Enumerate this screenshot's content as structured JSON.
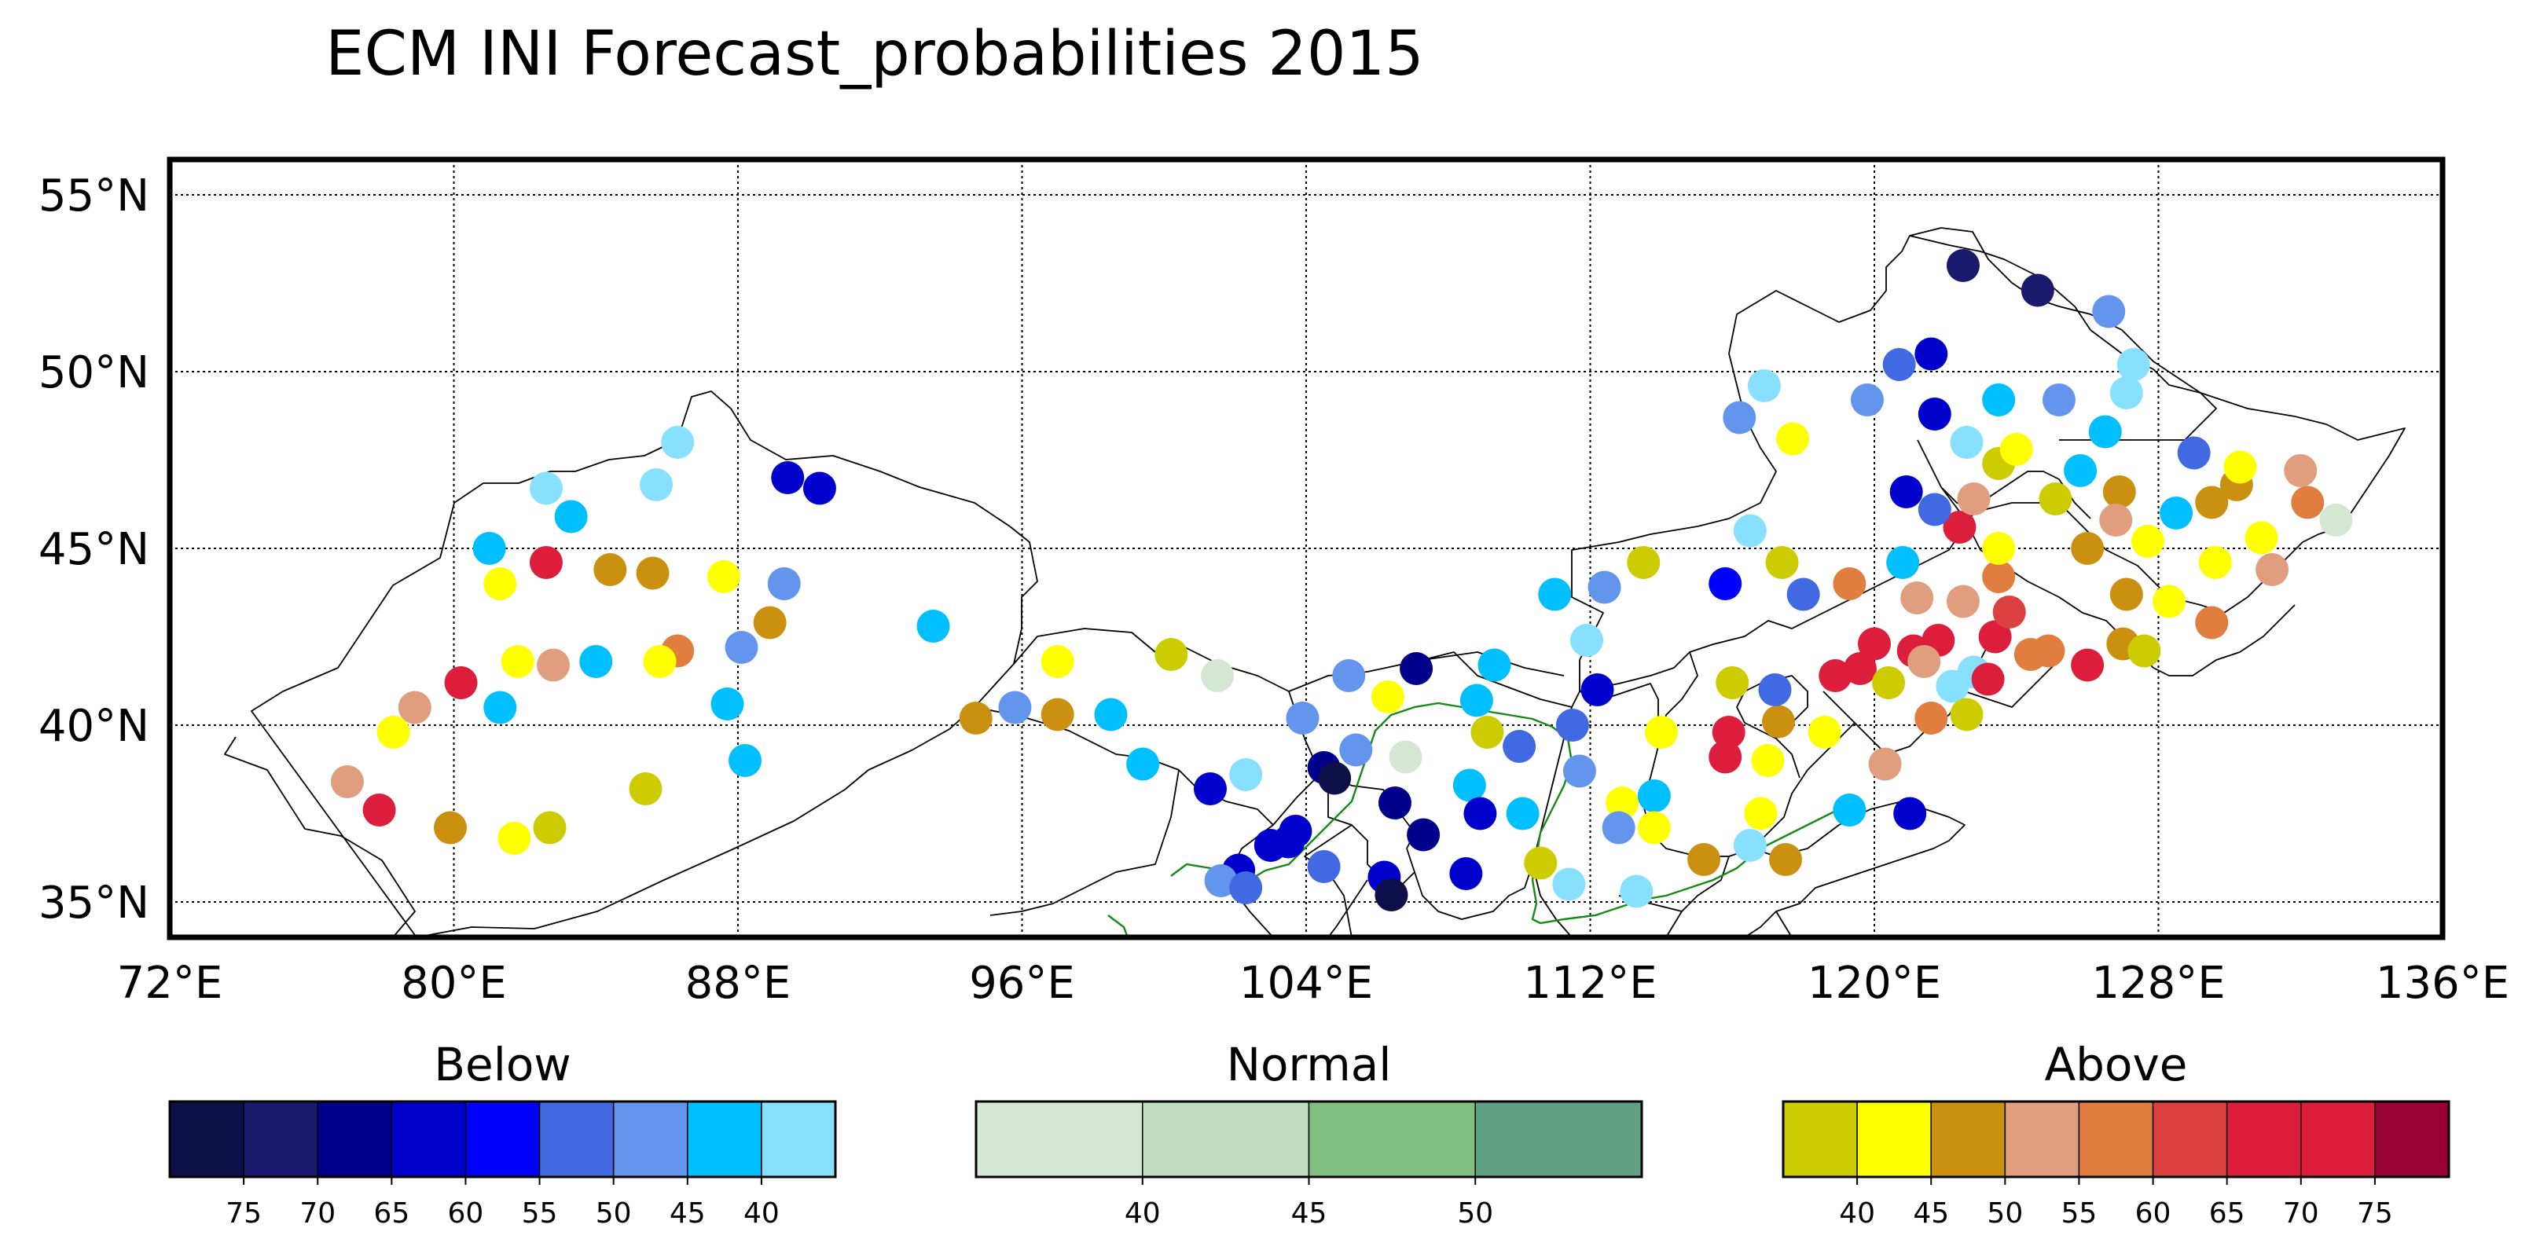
{
  "title": "ECM INI Forecast_probabilities 2015",
  "map": {
    "lon_range": [
      72,
      136
    ],
    "lat_range": [
      34,
      56
    ],
    "lon_ticks": [
      {
        "value": 72,
        "label": "72°E"
      },
      {
        "value": 80,
        "label": "80°E"
      },
      {
        "value": 88,
        "label": "88°E"
      },
      {
        "value": 96,
        "label": "96°E"
      },
      {
        "value": 104,
        "label": "104°E"
      },
      {
        "value": 112,
        "label": "112°E"
      },
      {
        "value": 120,
        "label": "120°E"
      },
      {
        "value": 128,
        "label": "128°E"
      },
      {
        "value": 136,
        "label": "136°E"
      }
    ],
    "lat_ticks": [
      {
        "value": 55,
        "label": "55°N"
      },
      {
        "value": 50,
        "label": "50°N"
      },
      {
        "value": 45,
        "label": "45°N"
      },
      {
        "value": 40,
        "label": "40°N"
      },
      {
        "value": 35,
        "label": "35°N"
      }
    ],
    "grid": true
  },
  "colorbars": [
    {
      "title": "Below",
      "colors": [
        "#0e0e48",
        "#19196e",
        "#00008b",
        "#0000cd",
        "#0000ff",
        "#4169e1",
        "#6495ed",
        "#00bfff",
        "#87e0ff"
      ],
      "labels": [
        "75",
        "70",
        "65",
        "60",
        "55",
        "50",
        "45",
        "40"
      ]
    },
    {
      "title": "Normal",
      "colors": [
        "#d3e7d3",
        "#bfdcbf",
        "#80c080",
        "#5fa082"
      ],
      "labels": [
        "40",
        "45",
        "50"
      ]
    },
    {
      "title": "Above",
      "colors": [
        "#cccc00",
        "#ffff00",
        "#cc9010",
        "#e09e7e",
        "#e27d40",
        "#dd4040",
        "#dc1e3c",
        "#dc1e3c",
        "#990033"
      ],
      "labels": [
        "40",
        "45",
        "50",
        "55",
        "60",
        "65",
        "70",
        "75"
      ]
    }
  ],
  "stations": [
    {
      "lon": 82.6,
      "lat": 46.7,
      "category": "below",
      "color": "#87e0ff"
    },
    {
      "lon": 85.7,
      "lat": 46.8,
      "category": "below",
      "color": "#87e0ff"
    },
    {
      "lon": 86.3,
      "lat": 48.0,
      "category": "below",
      "color": "#87e0ff"
    },
    {
      "lon": 83.3,
      "lat": 45.9,
      "category": "below",
      "color": "#00bfff"
    },
    {
      "lon": 81.0,
      "lat": 45.0,
      "category": "below",
      "color": "#00bfff"
    },
    {
      "lon": 89.4,
      "lat": 47.0,
      "category": "below",
      "color": "#0000cd"
    },
    {
      "lon": 90.3,
      "lat": 46.7,
      "category": "below",
      "color": "#0000cd"
    },
    {
      "lon": 81.3,
      "lat": 44.0,
      "category": "above",
      "color": "#ffff00"
    },
    {
      "lon": 82.6,
      "lat": 44.6,
      "category": "above",
      "color": "#dc1e3c"
    },
    {
      "lon": 84.4,
      "lat": 44.4,
      "category": "above",
      "color": "#cc9010"
    },
    {
      "lon": 85.6,
      "lat": 44.3,
      "category": "above",
      "color": "#cc9010"
    },
    {
      "lon": 87.6,
      "lat": 44.2,
      "category": "above",
      "color": "#ffff00"
    },
    {
      "lon": 89.3,
      "lat": 44.0,
      "category": "below",
      "color": "#6495ed"
    },
    {
      "lon": 88.9,
      "lat": 42.9,
      "category": "above",
      "color": "#cc9010"
    },
    {
      "lon": 88.1,
      "lat": 42.2,
      "category": "below",
      "color": "#6495ed"
    },
    {
      "lon": 86.3,
      "lat": 42.1,
      "category": "above",
      "color": "#e27d40"
    },
    {
      "lon": 85.8,
      "lat": 41.8,
      "category": "above",
      "color": "#ffff00"
    },
    {
      "lon": 84.0,
      "lat": 41.8,
      "category": "below",
      "color": "#00bfff"
    },
    {
      "lon": 82.8,
      "lat": 41.7,
      "category": "above",
      "color": "#e09e7e"
    },
    {
      "lon": 81.8,
      "lat": 41.8,
      "category": "above",
      "color": "#ffff00"
    },
    {
      "lon": 80.2,
      "lat": 41.2,
      "category": "above",
      "color": "#dc1e3c"
    },
    {
      "lon": 81.3,
      "lat": 40.5,
      "category": "below",
      "color": "#00bfff"
    },
    {
      "lon": 78.9,
      "lat": 40.5,
      "category": "above",
      "color": "#e09e7e"
    },
    {
      "lon": 78.3,
      "lat": 39.8,
      "category": "above",
      "color": "#ffff00"
    },
    {
      "lon": 77.0,
      "lat": 38.4,
      "category": "above",
      "color": "#e09e7e"
    },
    {
      "lon": 77.9,
      "lat": 37.6,
      "category": "above",
      "color": "#dc1e3c"
    },
    {
      "lon": 79.9,
      "lat": 37.1,
      "category": "above",
      "color": "#cc9010"
    },
    {
      "lon": 81.7,
      "lat": 36.8,
      "category": "above",
      "color": "#ffff00"
    },
    {
      "lon": 82.7,
      "lat": 37.1,
      "category": "above",
      "color": "#cccc00"
    },
    {
      "lon": 85.4,
      "lat": 38.2,
      "category": "above",
      "color": "#cccc00"
    },
    {
      "lon": 87.7,
      "lat": 40.6,
      "category": "below",
      "color": "#00bfff"
    },
    {
      "lon": 88.2,
      "lat": 39.0,
      "category": "below",
      "color": "#00bfff"
    },
    {
      "lon": 93.5,
      "lat": 42.8,
      "category": "below",
      "color": "#00bfff"
    },
    {
      "lon": 94.7,
      "lat": 40.2,
      "category": "above",
      "color": "#cc9010"
    },
    {
      "lon": 95.8,
      "lat": 40.5,
      "category": "below",
      "color": "#6495ed"
    },
    {
      "lon": 97.0,
      "lat": 41.8,
      "category": "above",
      "color": "#ffff00"
    },
    {
      "lon": 97.0,
      "lat": 40.3,
      "category": "above",
      "color": "#cc9010"
    },
    {
      "lon": 98.5,
      "lat": 40.3,
      "category": "below",
      "color": "#00bfff"
    },
    {
      "lon": 100.2,
      "lat": 42.0,
      "category": "above",
      "color": "#cccc00"
    },
    {
      "lon": 101.5,
      "lat": 41.4,
      "category": "normal",
      "color": "#d3e7d3"
    },
    {
      "lon": 99.4,
      "lat": 38.9,
      "category": "below",
      "color": "#00bfff"
    },
    {
      "lon": 101.3,
      "lat": 38.2,
      "category": "below",
      "color": "#0000cd"
    },
    {
      "lon": 102.3,
      "lat": 38.6,
      "category": "below",
      "color": "#87e0ff"
    },
    {
      "lon": 103.9,
      "lat": 40.2,
      "category": "below",
      "color": "#6495ed"
    },
    {
      "lon": 105.2,
      "lat": 41.4,
      "category": "below",
      "color": "#6495ed"
    },
    {
      "lon": 106.3,
      "lat": 40.8,
      "category": "above",
      "color": "#ffff00"
    },
    {
      "lon": 107.1,
      "lat": 41.6,
      "category": "below",
      "color": "#00008b"
    },
    {
      "lon": 105.4,
      "lat": 39.3,
      "category": "below",
      "color": "#6495ed"
    },
    {
      "lon": 104.5,
      "lat": 38.8,
      "category": "below",
      "color": "#00008b"
    },
    {
      "lon": 104.8,
      "lat": 38.5,
      "category": "below",
      "color": "#0e0e48"
    },
    {
      "lon": 106.5,
      "lat": 37.8,
      "category": "below",
      "color": "#00008b"
    },
    {
      "lon": 106.8,
      "lat": 39.1,
      "category": "normal",
      "color": "#d3e7d3"
    },
    {
      "lon": 107.3,
      "lat": 36.9,
      "category": "below",
      "color": "#00008b"
    },
    {
      "lon": 103.0,
      "lat": 36.6,
      "category": "below",
      "color": "#0000cd"
    },
    {
      "lon": 103.7,
      "lat": 37.0,
      "category": "below",
      "color": "#0000cd"
    },
    {
      "lon": 103.5,
      "lat": 36.7,
      "category": "below",
      "color": "#0000cd"
    },
    {
      "lon": 102.1,
      "lat": 35.9,
      "category": "below",
      "color": "#0000cd"
    },
    {
      "lon": 101.6,
      "lat": 35.6,
      "category": "below",
      "color": "#6495ed"
    },
    {
      "lon": 102.3,
      "lat": 35.4,
      "category": "below",
      "color": "#4169e1"
    },
    {
      "lon": 104.5,
      "lat": 36.0,
      "category": "below",
      "color": "#4169e1"
    },
    {
      "lon": 106.2,
      "lat": 35.7,
      "category": "below",
      "color": "#0000cd"
    },
    {
      "lon": 106.4,
      "lat": 35.2,
      "category": "below",
      "color": "#0e0e48"
    },
    {
      "lon": 108.5,
      "lat": 35.8,
      "category": "below",
      "color": "#0000cd"
    },
    {
      "lon": 108.6,
      "lat": 38.3,
      "category": "below",
      "color": "#00bfff"
    },
    {
      "lon": 108.9,
      "lat": 37.5,
      "category": "below",
      "color": "#0000cd"
    },
    {
      "lon": 109.1,
      "lat": 39.8,
      "category": "above",
      "color": "#cccc00"
    },
    {
      "lon": 108.8,
      "lat": 40.7,
      "category": "below",
      "color": "#00bfff"
    },
    {
      "lon": 109.3,
      "lat": 41.7,
      "category": "below",
      "color": "#00bfff"
    },
    {
      "lon": 110.0,
      "lat": 39.4,
      "category": "below",
      "color": "#4169e1"
    },
    {
      "lon": 110.1,
      "lat": 37.5,
      "category": "below",
      "color": "#00bfff"
    },
    {
      "lon": 110.6,
      "lat": 36.1,
      "category": "above",
      "color": "#cccc00"
    },
    {
      "lon": 111.4,
      "lat": 35.5,
      "category": "below",
      "color": "#87e0ff"
    },
    {
      "lon": 111.7,
      "lat": 38.7,
      "category": "below",
      "color": "#6495ed"
    },
    {
      "lon": 111.5,
      "lat": 40.0,
      "category": "below",
      "color": "#4169e1"
    },
    {
      "lon": 112.2,
      "lat": 41.0,
      "category": "below",
      "color": "#0000cd"
    },
    {
      "lon": 111.9,
      "lat": 42.4,
      "category": "below",
      "color": "#87e0ff"
    },
    {
      "lon": 111.0,
      "lat": 43.7,
      "category": "below",
      "color": "#00bfff"
    },
    {
      "lon": 112.4,
      "lat": 43.9,
      "category": "below",
      "color": "#6495ed"
    },
    {
      "lon": 113.5,
      "lat": 44.6,
      "category": "above",
      "color": "#cccc00"
    },
    {
      "lon": 112.9,
      "lat": 37.8,
      "category": "above",
      "color": "#ffff00"
    },
    {
      "lon": 113.8,
      "lat": 38.0,
      "category": "below",
      "color": "#00bfff"
    },
    {
      "lon": 113.8,
      "lat": 37.1,
      "category": "above",
      "color": "#ffff00"
    },
    {
      "lon": 112.8,
      "lat": 37.1,
      "category": "below",
      "color": "#6495ed"
    },
    {
      "lon": 113.3,
      "lat": 35.3,
      "category": "below",
      "color": "#87e0ff"
    },
    {
      "lon": 114.0,
      "lat": 39.8,
      "category": "above",
      "color": "#ffff00"
    },
    {
      "lon": 115.2,
      "lat": 36.2,
      "category": "above",
      "color": "#cc9010"
    },
    {
      "lon": 115.8,
      "lat": 39.1,
      "category": "above",
      "color": "#dc1e3c"
    },
    {
      "lon": 115.9,
      "lat": 39.8,
      "category": "above",
      "color": "#dc1e3c"
    },
    {
      "lon": 116.0,
      "lat": 41.2,
      "category": "above",
      "color": "#cccc00"
    },
    {
      "lon": 116.5,
      "lat": 36.6,
      "category": "below",
      "color": "#87e0ff"
    },
    {
      "lon": 116.8,
      "lat": 37.5,
      "category": "above",
      "color": "#ffff00"
    },
    {
      "lon": 117.0,
      "lat": 39.0,
      "category": "above",
      "color": "#ffff00"
    },
    {
      "lon": 117.3,
      "lat": 40.1,
      "category": "above",
      "color": "#cc9010"
    },
    {
      "lon": 117.2,
      "lat": 41.0,
      "category": "below",
      "color": "#4169e1"
    },
    {
      "lon": 117.5,
      "lat": 36.2,
      "category": "above",
      "color": "#cc9010"
    },
    {
      "lon": 118.6,
      "lat": 39.8,
      "category": "above",
      "color": "#ffff00"
    },
    {
      "lon": 118.9,
      "lat": 41.4,
      "category": "above",
      "color": "#dc1e3c"
    },
    {
      "lon": 119.3,
      "lat": 37.6,
      "category": "below",
      "color": "#00bfff"
    },
    {
      "lon": 120.3,
      "lat": 38.9,
      "category": "above",
      "color": "#e09e7e"
    },
    {
      "lon": 121.0,
      "lat": 37.5,
      "category": "below",
      "color": "#0000cd"
    },
    {
      "lon": 119.6,
      "lat": 41.6,
      "category": "above",
      "color": "#dc1e3c"
    },
    {
      "lon": 120.0,
      "lat": 42.3,
      "category": "above",
      "color": "#dc1e3c"
    },
    {
      "lon": 120.4,
      "lat": 41.2,
      "category": "above",
      "color": "#cccc00"
    },
    {
      "lon": 121.1,
      "lat": 42.1,
      "category": "above",
      "color": "#dc1e3c"
    },
    {
      "lon": 121.8,
      "lat": 42.4,
      "category": "above",
      "color": "#dc1e3c"
    },
    {
      "lon": 121.4,
      "lat": 41.8,
      "category": "above",
      "color": "#e09e7e"
    },
    {
      "lon": 121.6,
      "lat": 40.2,
      "category": "above",
      "color": "#e27d40"
    },
    {
      "lon": 122.2,
      "lat": 41.1,
      "category": "below",
      "color": "#87e0ff"
    },
    {
      "lon": 122.8,
      "lat": 41.5,
      "category": "below",
      "color": "#87e0ff"
    },
    {
      "lon": 122.6,
      "lat": 40.3,
      "category": "above",
      "color": "#cccc00"
    },
    {
      "lon": 123.2,
      "lat": 41.3,
      "category": "above",
      "color": "#dc1e3c"
    },
    {
      "lon": 123.4,
      "lat": 42.5,
      "category": "above",
      "color": "#dc1e3c"
    },
    {
      "lon": 123.8,
      "lat": 43.2,
      "category": "above",
      "color": "#dd4040"
    },
    {
      "lon": 124.4,
      "lat": 42.0,
      "category": "above",
      "color": "#e27d40"
    },
    {
      "lon": 122.5,
      "lat": 43.5,
      "category": "above",
      "color": "#e09e7e"
    },
    {
      "lon": 123.5,
      "lat": 44.2,
      "category": "above",
      "color": "#e27d40"
    },
    {
      "lon": 123.5,
      "lat": 45.0,
      "category": "above",
      "color": "#ffff00"
    },
    {
      "lon": 122.4,
      "lat": 45.6,
      "category": "above",
      "color": "#dc1e3c"
    },
    {
      "lon": 122.8,
      "lat": 46.4,
      "category": "above",
      "color": "#e09e7e"
    },
    {
      "lon": 121.7,
      "lat": 46.1,
      "category": "below",
      "color": "#4169e1"
    },
    {
      "lon": 120.9,
      "lat": 46.6,
      "category": "below",
      "color": "#0000cd"
    },
    {
      "lon": 120.8,
      "lat": 44.6,
      "category": "below",
      "color": "#00bfff"
    },
    {
      "lon": 121.2,
      "lat": 43.6,
      "category": "above",
      "color": "#e09e7e"
    },
    {
      "lon": 119.3,
      "lat": 44.0,
      "category": "above",
      "color": "#e27d40"
    },
    {
      "lon": 118.0,
      "lat": 43.7,
      "category": "below",
      "color": "#4169e1"
    },
    {
      "lon": 117.4,
      "lat": 44.6,
      "category": "above",
      "color": "#cccc00"
    },
    {
      "lon": 116.5,
      "lat": 45.5,
      "category": "below",
      "color": "#87e0ff"
    },
    {
      "lon": 115.8,
      "lat": 44.0,
      "category": "below",
      "color": "#0000ff"
    },
    {
      "lon": 116.2,
      "lat": 48.7,
      "category": "below",
      "color": "#6495ed"
    },
    {
      "lon": 116.9,
      "lat": 49.6,
      "category": "below",
      "color": "#87e0ff"
    },
    {
      "lon": 117.7,
      "lat": 48.1,
      "category": "above",
      "color": "#ffff00"
    },
    {
      "lon": 119.8,
      "lat": 49.2,
      "category": "below",
      "color": "#6495ed"
    },
    {
      "lon": 120.7,
      "lat": 50.2,
      "category": "below",
      "color": "#4169e1"
    },
    {
      "lon": 121.6,
      "lat": 50.5,
      "category": "below",
      "color": "#0000cd"
    },
    {
      "lon": 121.7,
      "lat": 48.8,
      "category": "below",
      "color": "#0000cd"
    },
    {
      "lon": 122.5,
      "lat": 53.0,
      "category": "below",
      "color": "#19196e"
    },
    {
      "lon": 122.6,
      "lat": 48.0,
      "category": "below",
      "color": "#87e0ff"
    },
    {
      "lon": 123.5,
      "lat": 49.2,
      "category": "below",
      "color": "#00bfff"
    },
    {
      "lon": 123.5,
      "lat": 47.4,
      "category": "above",
      "color": "#cccc00"
    },
    {
      "lon": 124.0,
      "lat": 47.8,
      "category": "above",
      "color": "#ffff00"
    },
    {
      "lon": 124.6,
      "lat": 52.3,
      "category": "below",
      "color": "#19196e"
    },
    {
      "lon": 125.2,
      "lat": 49.2,
      "category": "below",
      "color": "#6495ed"
    },
    {
      "lon": 125.1,
      "lat": 46.4,
      "category": "above",
      "color": "#cccc00"
    },
    {
      "lon": 125.8,
      "lat": 47.2,
      "category": "below",
      "color": "#00bfff"
    },
    {
      "lon": 126.5,
      "lat": 48.3,
      "category": "below",
      "color": "#00bfff"
    },
    {
      "lon": 126.6,
      "lat": 51.7,
      "category": "below",
      "color": "#6495ed"
    },
    {
      "lon": 127.3,
      "lat": 50.2,
      "category": "below",
      "color": "#87e0ff"
    },
    {
      "lon": 127.1,
      "lat": 49.4,
      "category": "below",
      "color": "#87e0ff"
    },
    {
      "lon": 126.9,
      "lat": 46.6,
      "category": "above",
      "color": "#cc9010"
    },
    {
      "lon": 126.8,
      "lat": 45.8,
      "category": "above",
      "color": "#e09e7e"
    },
    {
      "lon": 126.0,
      "lat": 45.0,
      "category": "above",
      "color": "#cc9010"
    },
    {
      "lon": 127.1,
      "lat": 43.7,
      "category": "above",
      "color": "#cc9010"
    },
    {
      "lon": 127.7,
      "lat": 45.2,
      "category": "above",
      "color": "#ffff00"
    },
    {
      "lon": 128.3,
      "lat": 43.5,
      "category": "above",
      "color": "#ffff00"
    },
    {
      "lon": 128.5,
      "lat": 46.0,
      "category": "below",
      "color": "#00bfff"
    },
    {
      "lon": 129.0,
      "lat": 47.7,
      "category": "below",
      "color": "#4169e1"
    },
    {
      "lon": 129.5,
      "lat": 46.3,
      "category": "above",
      "color": "#cc9010"
    },
    {
      "lon": 130.2,
      "lat": 46.8,
      "category": "above",
      "color": "#cc9010"
    },
    {
      "lon": 130.3,
      "lat": 47.3,
      "category": "above",
      "color": "#ffff00"
    },
    {
      "lon": 129.6,
      "lat": 44.6,
      "category": "above",
      "color": "#ffff00"
    },
    {
      "lon": 130.9,
      "lat": 45.3,
      "category": "above",
      "color": "#ffff00"
    },
    {
      "lon": 131.2,
      "lat": 44.4,
      "category": "above",
      "color": "#e09e7e"
    },
    {
      "lon": 132.0,
      "lat": 47.2,
      "category": "above",
      "color": "#e09e7e"
    },
    {
      "lon": 132.2,
      "lat": 46.3,
      "category": "above",
      "color": "#e27d40"
    },
    {
      "lon": 133.0,
      "lat": 45.8,
      "category": "normal",
      "color": "#d3e7d3"
    },
    {
      "lon": 129.5,
      "lat": 42.9,
      "category": "above",
      "color": "#e27d40"
    },
    {
      "lon": 127.0,
      "lat": 42.3,
      "category": "above",
      "color": "#cc9010"
    },
    {
      "lon": 127.6,
      "lat": 42.1,
      "category": "above",
      "color": "#cccc00"
    },
    {
      "lon": 126.0,
      "lat": 41.7,
      "category": "above",
      "color": "#dc1e3c"
    },
    {
      "lon": 124.9,
      "lat": 42.1,
      "category": "above",
      "color": "#e27d40"
    }
  ]
}
